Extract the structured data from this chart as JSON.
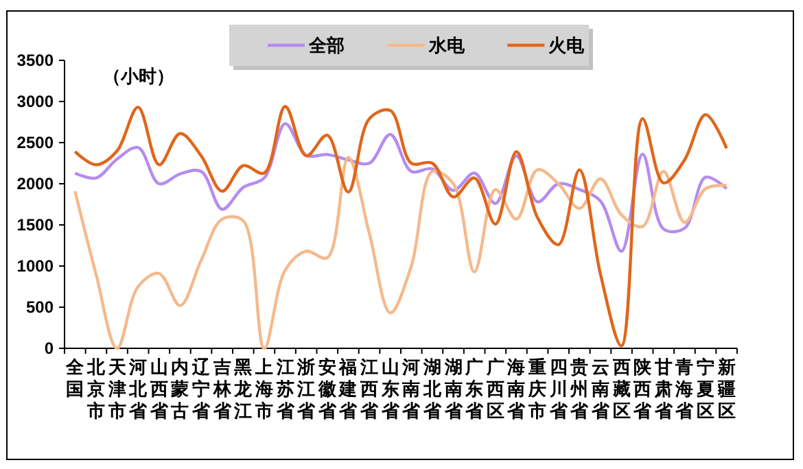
{
  "chart_data": {
    "type": "line",
    "ylabel": "（小时）",
    "categories": [
      "全国",
      "北京市",
      "天津市",
      "河北省",
      "山西省",
      "内蒙古",
      "辽宁省",
      "吉林省",
      "黑龙江",
      "上海市",
      "江苏省",
      "浙江省",
      "安徽省",
      "福建省",
      "江西省",
      "山东省",
      "河南省",
      "湖北省",
      "湖南省",
      "广东省",
      "广西区",
      "海南省",
      "重庆市",
      "四川省",
      "贵州省",
      "云南省",
      "西藏区",
      "陕西省",
      "甘肃省",
      "青海省",
      "宁夏区",
      "新疆区"
    ],
    "series": [
      {
        "name": "全部",
        "color": "#b58cf0",
        "values": [
          2130,
          2070,
          2300,
          2440,
          2000,
          2120,
          2150,
          1690,
          1955,
          2070,
          2730,
          2345,
          2355,
          2290,
          2250,
          2600,
          2150,
          2180,
          1920,
          2130,
          1760,
          2340,
          1780,
          2000,
          1930,
          1790,
          1180,
          2360,
          1450,
          1460,
          2080,
          1940
        ]
      },
      {
        "name": "水电",
        "color": "#f5b98c",
        "values": [
          1910,
          900,
          0,
          750,
          910,
          520,
          1070,
          1570,
          1550,
          0,
          950,
          1180,
          1100,
          2320,
          1400,
          430,
          1000,
          2150,
          2000,
          930,
          1930,
          1570,
          2170,
          2000,
          1700,
          2060,
          1620,
          1480,
          2150,
          1530,
          1940,
          1980
        ]
      },
      {
        "name": "火电",
        "color": "#e0661a",
        "values": [
          2390,
          2230,
          2400,
          2930,
          2230,
          2610,
          2340,
          1910,
          2220,
          2130,
          2940,
          2340,
          2590,
          1900,
          2790,
          2890,
          2250,
          2250,
          1840,
          2070,
          1510,
          2390,
          1590,
          1260,
          2170,
          900,
          30,
          2790,
          2010,
          2290,
          2840,
          2430
        ]
      }
    ],
    "ylim": [
      0,
      3500
    ],
    "yticks": [
      0,
      500,
      1000,
      1500,
      2000,
      2500,
      3000,
      3500
    ],
    "grid": false,
    "legend": "top",
    "marker": "none",
    "line_style": "solid"
  }
}
